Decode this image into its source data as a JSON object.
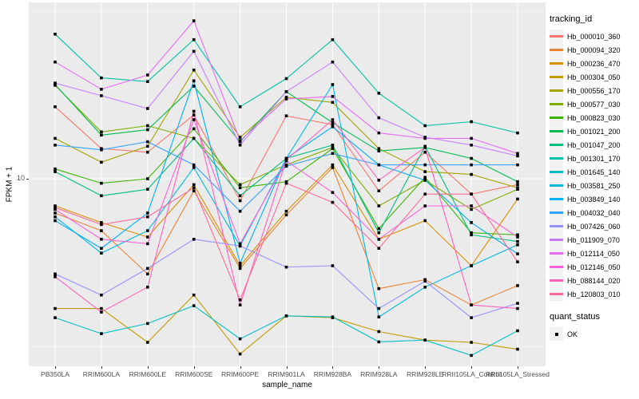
{
  "figure": {
    "y_axis_title": "FPKM + 1",
    "y_tick_label": "10",
    "x_axis_title": "sample_name",
    "legend_title": "tracking_id",
    "quant_legend_title": "quant_status",
    "quant_legend_item": "OK",
    "panel_background": "#EBEBEB",
    "gridline_color": "#FFFFFF",
    "tick_text_color": "#4D4D4D"
  },
  "chart_data": {
    "type": "line",
    "title": "",
    "xlabel": "sample_name",
    "ylabel": "FPKM + 1",
    "y_scale": "log10",
    "y_major_break": 10,
    "y_minor_breaks": [
      3.16,
      31.6
    ],
    "ylim_approx": [
      2.9,
      31
    ],
    "grid": true,
    "legend_position": "right",
    "marker": {
      "shape": "square",
      "color": "#000000",
      "legend": "quant_status",
      "label": "OK"
    },
    "categories": [
      "PB350LA",
      "RRIM600LA",
      "RRIM600LE",
      "RRIM600SE",
      "RRIM600PE",
      "RRIM901LA",
      "RRIM928BA",
      "RRIM928LA",
      "RRIM928LE",
      "RRII105LA_Control",
      "RRII105LA_Stressed"
    ],
    "series": [
      {
        "name": "Hb_000010_360",
        "color": "#F8766D",
        "values": [
          16.4,
          12.3,
          12.0,
          15.5,
          8.6,
          15.4,
          14.5,
          9.2,
          12.0,
          9.0,
          9.6
        ]
      },
      {
        "name": "Hb_000094_320",
        "color": "#EA8331",
        "values": [
          7.9,
          7.0,
          5.2,
          9.2,
          5.4,
          7.8,
          10.8,
          4.7,
          5.0,
          4.2,
          4.8
        ]
      },
      {
        "name": "Hb_000236_470",
        "color": "#D89000",
        "values": [
          8.3,
          7.4,
          6.7,
          9.6,
          5.5,
          8.0,
          11.0,
          6.6,
          7.5,
          5.5,
          8.7
        ]
      },
      {
        "name": "Hb_000304_050",
        "color": "#C09B00",
        "values": [
          4.1,
          4.1,
          3.25,
          4.5,
          3.0,
          3.9,
          3.85,
          3.5,
          3.3,
          3.25,
          3.1
        ]
      },
      {
        "name": "Hb_000556_170",
        "color": "#A3A500",
        "values": [
          13.2,
          11.2,
          12.5,
          21.1,
          13.3,
          17.5,
          16.9,
          12.3,
          10.5,
          10.3,
          9.4
        ]
      },
      {
        "name": "Hb_000577_030",
        "color": "#7CAE00",
        "values": [
          19.0,
          13.8,
          14.4,
          13.2,
          9.6,
          11.0,
          12.4,
          8.3,
          9.9,
          8.1,
          9.3
        ]
      },
      {
        "name": "Hb_000823_030",
        "color": "#39B600",
        "values": [
          10.7,
          9.7,
          10.0,
          14.1,
          9.4,
          9.8,
          12.3,
          7.1,
          10.1,
          6.9,
          6.8
        ]
      },
      {
        "name": "Hb_001021_200",
        "color": "#00BB4E",
        "values": [
          19.1,
          13.5,
          14.0,
          18.9,
          12.9,
          18.2,
          14.7,
          12.1,
          12.4,
          11.5,
          9.8
        ]
      },
      {
        "name": "Hb_001047_200",
        "color": "#00BF7D",
        "values": [
          10.5,
          8.9,
          9.3,
          13.2,
          8.9,
          11.5,
          12.6,
          6.9,
          12.5,
          6.8,
          6.5
        ]
      },
      {
        "name": "Hb_001301_170",
        "color": "#00C1A3",
        "values": [
          27,
          20,
          19.5,
          26,
          16.4,
          19.9,
          26,
          18,
          14.4,
          14.8,
          13.7
        ]
      },
      {
        "name": "Hb_001645_140",
        "color": "#00BFC4",
        "values": [
          3.85,
          3.45,
          3.7,
          4.18,
          3.33,
          3.9,
          3.87,
          3.26,
          3.3,
          2.97,
          3.52
        ]
      },
      {
        "name": "Hb_003581_250",
        "color": "#00BAE0",
        "values": [
          7.7,
          6.0,
          7.0,
          10.8,
          6.3,
          11.5,
          19.1,
          3.87,
          4.75,
          5.5,
          6.35
        ]
      },
      {
        "name": "Hb_003849_140",
        "color": "#00B0F6",
        "values": [
          7.5,
          6.2,
          7.9,
          19.6,
          5.6,
          11.5,
          14.3,
          11.0,
          9.9,
          7.4,
          5.97
        ]
      },
      {
        "name": "Hb_004032_040",
        "color": "#35A2FF",
        "values": [
          12.6,
          12.2,
          12.9,
          11.0,
          8.0,
          10.9,
          11.9,
          11.0,
          11.0,
          11.0,
          11.0
        ]
      },
      {
        "name": "Hb_007426_060",
        "color": "#9590FF",
        "values": [
          5.2,
          4.5,
          5.4,
          6.6,
          6.3,
          5.45,
          5.5,
          4.1,
          4.95,
          3.85,
          4.25
        ]
      },
      {
        "name": "Hb_011909_070",
        "color": "#C77CFF",
        "values": [
          19.3,
          17.7,
          16.2,
          24,
          12.6,
          18.2,
          22.3,
          15.2,
          13.3,
          12.6,
          11.7
        ]
      },
      {
        "name": "Hb_012114_050",
        "color": "#E76BF3",
        "values": [
          22.3,
          18.5,
          20.4,
          29.6,
          13.0,
          17.3,
          17.6,
          13.7,
          13.2,
          13.2,
          11.9
        ]
      },
      {
        "name": "Hb_012146_050",
        "color": "#FA62DB",
        "values": [
          8.1,
          6.6,
          6.4,
          15.0,
          6.4,
          11.3,
          9.1,
          6.6,
          8.3,
          8.3,
          6.7
        ]
      },
      {
        "name": "Hb_088144_020",
        "color": "#FF62BC",
        "values": [
          5.1,
          4.0,
          4.75,
          15.9,
          4.2,
          11.4,
          15.0,
          9.9,
          12.4,
          4.2,
          4.1
        ]
      },
      {
        "name": "Hb_120803_010",
        "color": "#FF6A98",
        "values": [
          8.2,
          7.3,
          7.7,
          9.4,
          4.35,
          9.7,
          8.5,
          6.2,
          9.0,
          9.0,
          5.65
        ]
      }
    ]
  }
}
